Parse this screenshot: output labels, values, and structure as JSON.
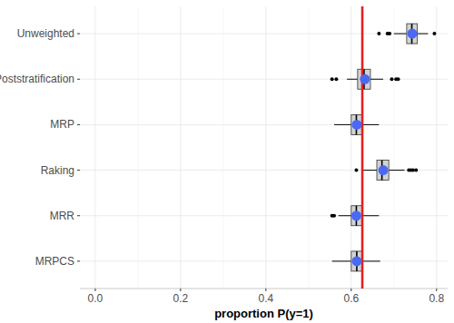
{
  "chart_data": {
    "type": "boxplot",
    "orientation": "horizontal",
    "x_label": "proportion P(y=1)",
    "categories": [
      "Unweighted",
      "Poststratification",
      "MRP",
      "Raking",
      "MRR",
      "MRPCS"
    ],
    "boxes": [
      {
        "whisker_low": 0.7,
        "q1": 0.73,
        "median": 0.742,
        "q3": 0.755,
        "whisker_high": 0.78,
        "mean": 0.743,
        "outliers": [
          0.665,
          0.685,
          0.69,
          0.795
        ]
      },
      {
        "whisker_low": 0.59,
        "q1": 0.615,
        "median": 0.63,
        "q3": 0.645,
        "whisker_high": 0.675,
        "mean": 0.632,
        "outliers": [
          0.555,
          0.565,
          0.695,
          0.705,
          0.71
        ]
      },
      {
        "whisker_low": 0.56,
        "q1": 0.6,
        "median": 0.612,
        "q3": 0.625,
        "whisker_high": 0.665,
        "mean": 0.613,
        "outliers": []
      },
      {
        "whisker_low": 0.625,
        "q1": 0.66,
        "median": 0.672,
        "q3": 0.688,
        "whisker_high": 0.725,
        "mean": 0.675,
        "outliers": [
          0.612,
          0.735,
          0.74,
          0.745,
          0.752
        ]
      },
      {
        "whisker_low": 0.57,
        "q1": 0.6,
        "median": 0.612,
        "q3": 0.625,
        "whisker_high": 0.665,
        "mean": 0.612,
        "outliers": [
          0.555,
          0.56
        ]
      },
      {
        "whisker_low": 0.555,
        "q1": 0.6,
        "median": 0.613,
        "q3": 0.625,
        "whisker_high": 0.668,
        "mean": 0.613,
        "outliers": []
      }
    ],
    "reference_line": 0.626,
    "xlim": [
      -0.036,
      0.826
    ],
    "xticks": [
      {
        "value": 0,
        "label": "0.0"
      },
      0.2,
      0.4,
      0.6,
      0.8
    ],
    "grid": true,
    "color": "#d3d3d3"
  }
}
